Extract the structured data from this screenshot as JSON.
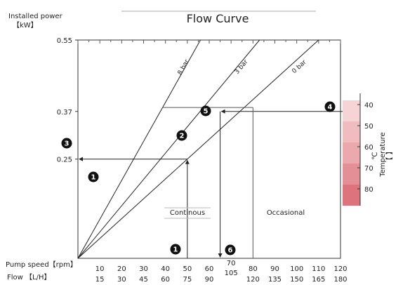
{
  "chart_data": {
    "type": "line",
    "title": "Flow Curve",
    "ylabel": "Installed power",
    "yunit": "【kW】",
    "ylim": [
      0,
      0.55
    ],
    "xlim": [
      0,
      120
    ],
    "y_ticks": [
      "0.55",
      "0.37",
      "0.25"
    ],
    "speed_label": "Pump speed【rpm】",
    "flow_label": "Flow 【L/H】",
    "speed_ticks": [
      "10",
      "20",
      "30",
      "40",
      "50",
      "60",
      "70",
      "80",
      "90",
      "100",
      "110",
      "120"
    ],
    "flow_ticks": [
      "15",
      "30",
      "45",
      "60",
      "75",
      "90",
      "105",
      "120",
      "135",
      "150",
      "165",
      "180"
    ],
    "series": [
      {
        "name": "8 bar",
        "x": [
          0,
          56
        ],
        "y": [
          0,
          0.55
        ]
      },
      {
        "name": "3 bar",
        "x": [
          0,
          83
        ],
        "y": [
          0,
          0.55
        ]
      },
      {
        "name": "0 bar",
        "x": [
          0,
          110
        ],
        "y": [
          0,
          0.55
        ]
      }
    ],
    "region_labels": [
      "Continous",
      "Occasional"
    ],
    "temperature_scale": {
      "label": "Temperature",
      "unit": "℃",
      "bracket": "【 】",
      "ticks": [
        "40",
        "50",
        "60",
        "70",
        "80"
      ],
      "colors": [
        "#f6d3d5",
        "#f1bcc0",
        "#eba8ad",
        "#e48e95",
        "#dd737c"
      ]
    },
    "markers": [
      "1",
      "2",
      "3",
      "4",
      "5",
      "6"
    ],
    "annotations": {
      "continuous_speed": 50,
      "power_read": 0.25,
      "start_power": 0.37,
      "occasional_speed": 65,
      "occasional_max_speed": 80
    },
    "colors": {
      "line": "#222222",
      "grid": "#999999",
      "accent": "#cc5560"
    }
  }
}
